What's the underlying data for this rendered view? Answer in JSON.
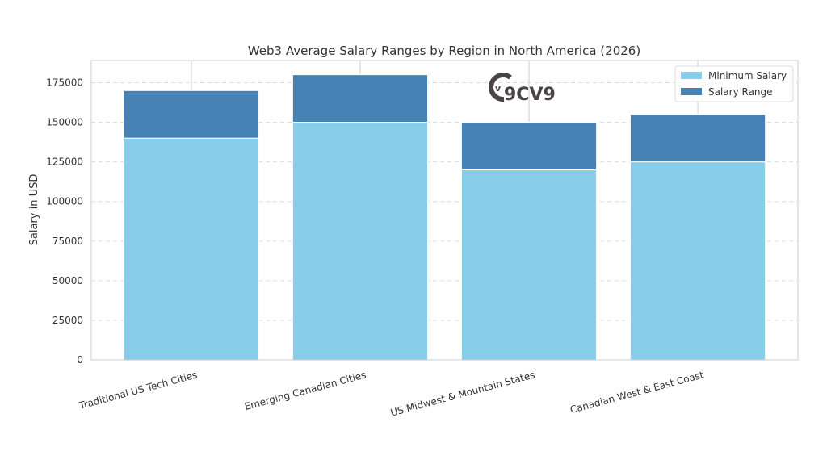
{
  "chart_data": {
    "type": "bar",
    "stacked": true,
    "title": "Web3 Average Salary Ranges by Region in North America (2026)",
    "xlabel": "",
    "ylabel": "Salary in USD",
    "ylim": [
      0,
      189000
    ],
    "yticks": [
      0,
      25000,
      50000,
      75000,
      100000,
      125000,
      150000,
      175000
    ],
    "categories": [
      "Traditional US Tech Cities",
      "Emerging Canadian Cities",
      "US Midwest & Mountain States",
      "Canadian West & East Coast"
    ],
    "series": [
      {
        "name": "Minimum Salary",
        "values": [
          140000,
          150000,
          120000,
          125000
        ],
        "color": "#87CEEB"
      },
      {
        "name": "Salary Range",
        "values": [
          30000,
          30000,
          30000,
          30000
        ],
        "color": "#4682B4"
      }
    ],
    "grid": true,
    "legend": "top-right"
  },
  "logo": {
    "text": "9CV9",
    "color": "#4a4444"
  }
}
